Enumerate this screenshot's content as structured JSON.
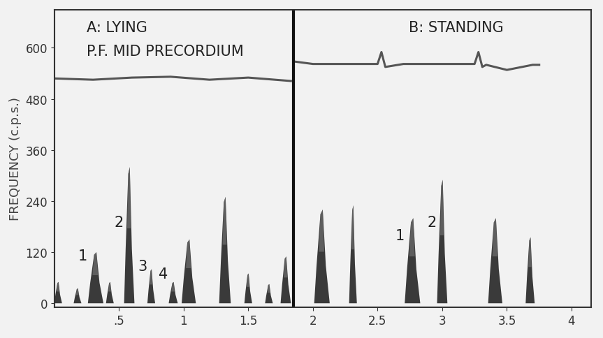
{
  "chart_data": {
    "type": "spectrogram",
    "y_label": "FREQUENCY (c.p.s.)",
    "xlim": [
      0,
      4.15
    ],
    "ylim": [
      -10,
      690
    ],
    "xticks": [
      {
        "value": 0.5,
        "label": ".5"
      },
      1,
      1.5,
      2,
      2.5,
      3,
      3.5,
      4
    ],
    "yticks": [
      0,
      120,
      240,
      360,
      480,
      600
    ],
    "color": "#1a1a1a",
    "divider": 1.85,
    "panels": [
      {
        "title": "A: LYING",
        "subtitle": "P.F. MID PRECORDIUM"
      },
      {
        "title": "B: STANDING"
      }
    ],
    "bursts": {
      "x": [
        0.03,
        0.18,
        0.32,
        0.43,
        0.58,
        0.75,
        0.92,
        1.04,
        1.32,
        1.5,
        1.66,
        1.79,
        2.07,
        2.31,
        2.77,
        3.0,
        3.41,
        3.68
      ],
      "duration": [
        0.06,
        0.06,
        0.12,
        0.06,
        0.08,
        0.06,
        0.07,
        0.11,
        0.09,
        0.06,
        0.06,
        0.08,
        0.12,
        0.06,
        0.12,
        0.08,
        0.11,
        0.07
      ],
      "peak": [
        50,
        35,
        120,
        50,
        320,
        80,
        50,
        150,
        250,
        70,
        45,
        110,
        220,
        230,
        200,
        290,
        200,
        155
      ],
      "labels": [
        null,
        null,
        "1",
        null,
        "2",
        "3",
        "4",
        null,
        null,
        null,
        null,
        null,
        null,
        null,
        "1",
        "2",
        null,
        null
      ]
    },
    "ecg": [
      {
        "x": [
          0.0,
          0.3,
          0.6,
          0.9,
          1.2,
          1.5,
          1.83
        ],
        "values": [
          528,
          525,
          530,
          532,
          525,
          530,
          522
        ]
      },
      {
        "x": [
          1.85,
          2.0,
          2.45,
          2.5,
          2.53,
          2.56,
          2.7,
          3.25,
          3.28,
          3.31,
          3.34,
          3.5,
          3.7,
          3.75
        ],
        "values": [
          568,
          562,
          562,
          562,
          590,
          555,
          562,
          562,
          590,
          555,
          560,
          548,
          560,
          560
        ]
      }
    ]
  }
}
